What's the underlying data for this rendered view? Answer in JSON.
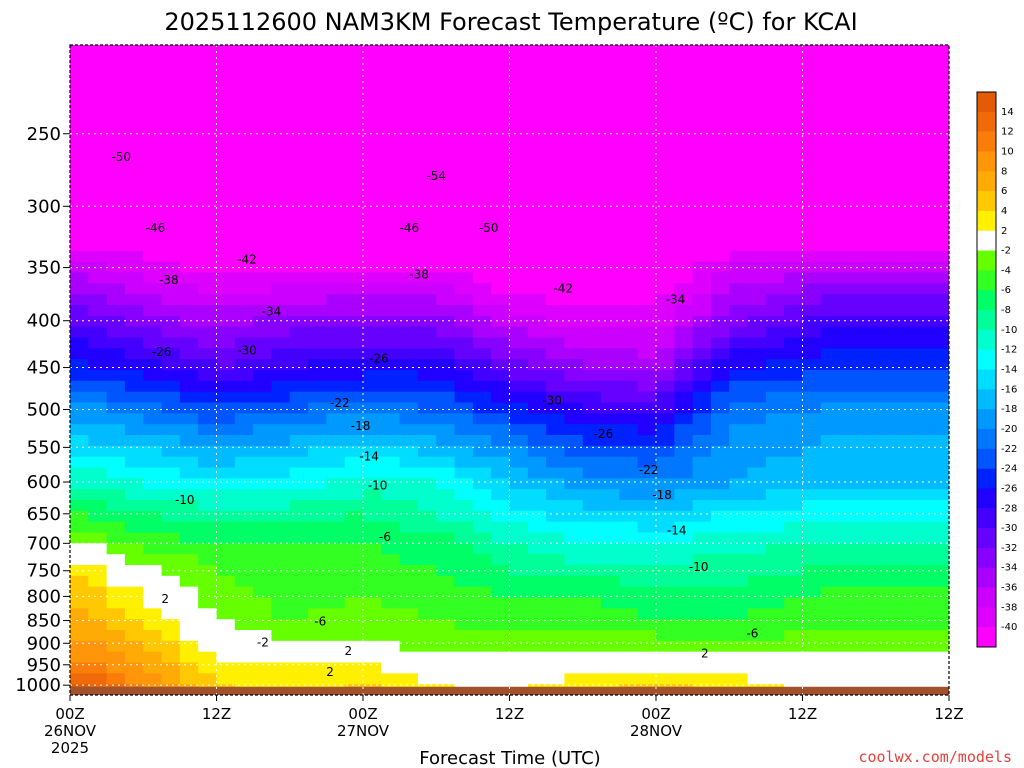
{
  "chart_data": {
    "type": "heatmap",
    "title": "2025112600 NAM3KM Forecast Temperature (ºC) for KCAI",
    "xlabel": "Forecast Time (UTC)",
    "ylabel": "",
    "x_unit_note": "forecast hours from 00Z 26NOV2025",
    "x_range": [
      0,
      72
    ],
    "x_ticks": [
      {
        "value": 0,
        "label": "00Z",
        "sub1": "26NOV",
        "sub2": "2025"
      },
      {
        "value": 12,
        "label": "12Z",
        "sub1": "",
        "sub2": ""
      },
      {
        "value": 24,
        "label": "00Z",
        "sub1": "27NOV",
        "sub2": ""
      },
      {
        "value": 36,
        "label": "12Z",
        "sub1": "",
        "sub2": ""
      },
      {
        "value": 48,
        "label": "00Z",
        "sub1": "28NOV",
        "sub2": ""
      },
      {
        "value": 60,
        "label": "12Z",
        "sub1": "",
        "sub2": ""
      }
    ],
    "y_scale": "log",
    "y_inverted": true,
    "y_range": [
      1025,
      200
    ],
    "y_ticks": [
      250,
      300,
      350,
      400,
      450,
      500,
      550,
      600,
      650,
      700,
      750,
      800,
      850,
      900,
      950,
      1000
    ],
    "grid": true,
    "surface_pressure": 1004,
    "colorbar": {
      "placement": "right",
      "labels": [
        "14",
        "12",
        "10",
        "8",
        "6",
        "4",
        "2",
        "-2",
        "-4",
        "-6",
        "-8",
        "-10",
        "-12",
        "-14",
        "-16",
        "-18",
        "-20",
        "-22",
        "-24",
        "-26",
        "-28",
        "-30",
        "-32",
        "-34",
        "-36",
        "-38",
        "-40"
      ],
      "bins": [
        {
          "min": 14,
          "max": 16,
          "color": "#e35a07"
        },
        {
          "min": 12,
          "max": 14,
          "color": "#f06a08"
        },
        {
          "min": 10,
          "max": 12,
          "color": "#fa7d0a"
        },
        {
          "min": 8,
          "max": 10,
          "color": "#ff9508"
        },
        {
          "min": 6,
          "max": 8,
          "color": "#ffab05"
        },
        {
          "min": 4,
          "max": 6,
          "color": "#ffc800"
        },
        {
          "min": 2,
          "max": 4,
          "color": "#fff000"
        },
        {
          "min": -2,
          "max": 2,
          "color": "#ffffff"
        },
        {
          "min": -4,
          "max": -2,
          "color": "#66ff00"
        },
        {
          "min": -6,
          "max": -4,
          "color": "#33ff22"
        },
        {
          "min": -8,
          "max": -6,
          "color": "#00ff66"
        },
        {
          "min": -10,
          "max": -8,
          "color": "#00ff99"
        },
        {
          "min": -12,
          "max": -10,
          "color": "#00ffcc"
        },
        {
          "min": -14,
          "max": -12,
          "color": "#00ffff"
        },
        {
          "min": -16,
          "max": -14,
          "color": "#00ddff"
        },
        {
          "min": -18,
          "max": -16,
          "color": "#00bbff"
        },
        {
          "min": -20,
          "max": -18,
          "color": "#0099ff"
        },
        {
          "min": -22,
          "max": -20,
          "color": "#0077ff"
        },
        {
          "min": -24,
          "max": -22,
          "color": "#0055ff"
        },
        {
          "min": -26,
          "max": -24,
          "color": "#0022ff"
        },
        {
          "min": -28,
          "max": -26,
          "color": "#2200ff"
        },
        {
          "min": -30,
          "max": -28,
          "color": "#4400ff"
        },
        {
          "min": -32,
          "max": -30,
          "color": "#6600ff"
        },
        {
          "min": -34,
          "max": -32,
          "color": "#8800ff"
        },
        {
          "min": -36,
          "max": -34,
          "color": "#aa00ff"
        },
        {
          "min": -38,
          "max": -36,
          "color": "#cc00ff"
        },
        {
          "min": -40,
          "max": -38,
          "color": "#dd00ff"
        },
        {
          "min": -99,
          "max": -40,
          "color": "#ff00ff"
        }
      ]
    },
    "profile_pressures": [
      250,
      300,
      350,
      400,
      450,
      500,
      550,
      600,
      650,
      700,
      750,
      800,
      850,
      900,
      950,
      1000
    ],
    "profile_times": [
      0,
      6,
      12,
      18,
      24,
      30,
      36,
      42,
      48,
      54,
      60
    ],
    "temperature_grid": [
      [
        -50,
        -51,
        -51,
        -53,
        -53,
        -53,
        -55,
        -55,
        -55,
        -55,
        -54
      ],
      [
        -45,
        -45,
        -46,
        -46,
        -46,
        -47,
        -50,
        -50,
        -50,
        -49,
        -48
      ],
      [
        -37,
        -39,
        -41,
        -41,
        -40,
        -40,
        -43,
        -44,
        -43,
        -38,
        -37
      ],
      [
        -30,
        -33,
        -35,
        -33,
        -33,
        -33,
        -37,
        -39,
        -39,
        -33,
        -30
      ],
      [
        -25,
        -27,
        -30,
        -28,
        -27,
        -27,
        -31,
        -34,
        -35,
        -26,
        -25
      ],
      [
        -19,
        -21,
        -24,
        -22,
        -21,
        -22,
        -25,
        -28,
        -29,
        -21,
        -20
      ],
      [
        -15,
        -16,
        -18,
        -17,
        -15,
        -17,
        -20,
        -23,
        -24,
        -19,
        -18
      ],
      [
        -10,
        -12,
        -14,
        -13,
        -11,
        -12,
        -16,
        -19,
        -20,
        -18,
        -17
      ],
      [
        -6,
        -8,
        -9,
        -9,
        -8,
        -10,
        -13,
        -15,
        -16,
        -14,
        -13
      ],
      [
        -1,
        -5,
        -6,
        -6,
        -6,
        -7,
        -10,
        -12,
        -12,
        -11,
        -10
      ],
      [
        4,
        -1,
        -4,
        -5,
        -5,
        -6,
        -8,
        -9,
        -9,
        -9,
        -8
      ],
      [
        6,
        2,
        -3,
        -5,
        -4,
        -5,
        -6,
        -6,
        -7,
        -7,
        -6
      ],
      [
        7,
        4,
        -2,
        -4,
        -3,
        -4,
        -5,
        -5,
        -6,
        -6,
        -5
      ],
      [
        9,
        6,
        0,
        -2,
        -2,
        -3,
        -3,
        -3,
        -3,
        -4,
        -3
      ],
      [
        11,
        8,
        3,
        2,
        2,
        1,
        0,
        1,
        1,
        1,
        0
      ],
      [
        15,
        10,
        4,
        3,
        4,
        2,
        1,
        3,
        4,
        3,
        1
      ]
    ],
    "contour_labels": [
      {
        "text": "-50",
        "t": 4.2,
        "p": 265
      },
      {
        "text": "-54",
        "t": 30.0,
        "p": 278
      },
      {
        "text": "-46",
        "t": 7.0,
        "p": 317
      },
      {
        "text": "-46",
        "t": 27.8,
        "p": 317
      },
      {
        "text": "-50",
        "t": 34.3,
        "p": 317
      },
      {
        "text": "-42",
        "t": 14.5,
        "p": 343
      },
      {
        "text": "-42",
        "t": 40.4,
        "p": 369
      },
      {
        "text": "-38",
        "t": 8.1,
        "p": 361
      },
      {
        "text": "-38",
        "t": 28.6,
        "p": 356
      },
      {
        "text": "-34",
        "t": 16.5,
        "p": 391
      },
      {
        "text": "-34",
        "t": 49.6,
        "p": 379
      },
      {
        "text": "-30",
        "t": 14.5,
        "p": 431
      },
      {
        "text": "-30",
        "t": 39.5,
        "p": 489
      },
      {
        "text": "-26",
        "t": 7.5,
        "p": 433
      },
      {
        "text": "-26",
        "t": 25.3,
        "p": 440
      },
      {
        "text": "-26",
        "t": 43.7,
        "p": 532
      },
      {
        "text": "-22",
        "t": 22.1,
        "p": 492
      },
      {
        "text": "-22",
        "t": 47.4,
        "p": 582
      },
      {
        "text": "-18",
        "t": 23.8,
        "p": 521
      },
      {
        "text": "-18",
        "t": 48.5,
        "p": 620
      },
      {
        "text": "-14",
        "t": 24.5,
        "p": 563
      },
      {
        "text": "-14",
        "t": 49.7,
        "p": 678
      },
      {
        "text": "-10",
        "t": 9.4,
        "p": 628
      },
      {
        "text": "-10",
        "t": 25.2,
        "p": 605
      },
      {
        "text": "-10",
        "t": 51.5,
        "p": 743
      },
      {
        "text": "-6",
        "t": 25.8,
        "p": 689
      },
      {
        "text": "-6",
        "t": 20.5,
        "p": 852
      },
      {
        "text": "-6",
        "t": 55.9,
        "p": 878
      },
      {
        "text": "-2",
        "t": 15.8,
        "p": 898
      },
      {
        "text": "2",
        "t": 7.8,
        "p": 805
      },
      {
        "text": "2",
        "t": 22.8,
        "p": 918
      },
      {
        "text": "2",
        "t": 21.3,
        "p": 968
      },
      {
        "text": "2",
        "t": 52.0,
        "p": 924
      }
    ]
  },
  "credit": "coolwx.com/models"
}
